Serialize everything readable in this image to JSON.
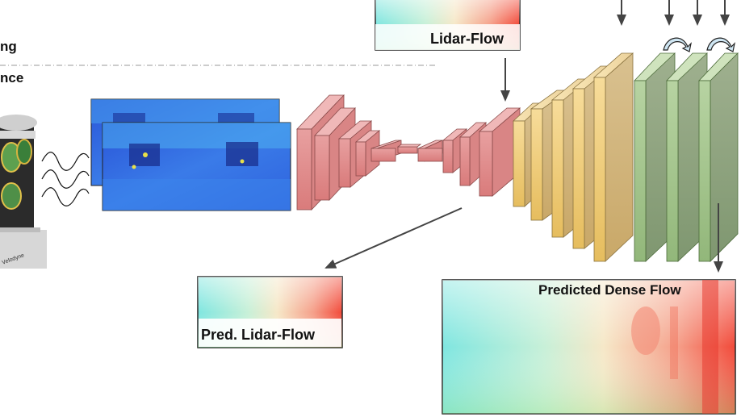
{
  "legend": {
    "line1_fragment": "ng",
    "line2_fragment": "nce"
  },
  "lidar_flow_label": "Lidar-Flow",
  "pred_lidar_flow_label": "Pred. Lidar-Flow",
  "predicted_dense_flow_label": "Predicted Dense Flow",
  "sensor_brand_text": "Velodyne",
  "colors": {
    "encoder_block": "#e59a9a",
    "encoder_block_dark": "#c86b6b",
    "decoder_block": "#f3d48a",
    "decoder_block_dark": "#d8ad4f",
    "refine_block": "#a9c894",
    "refine_block_dark": "#7aa160",
    "depth_map_blue": "#2f5fe0",
    "arrow": "#444444"
  }
}
